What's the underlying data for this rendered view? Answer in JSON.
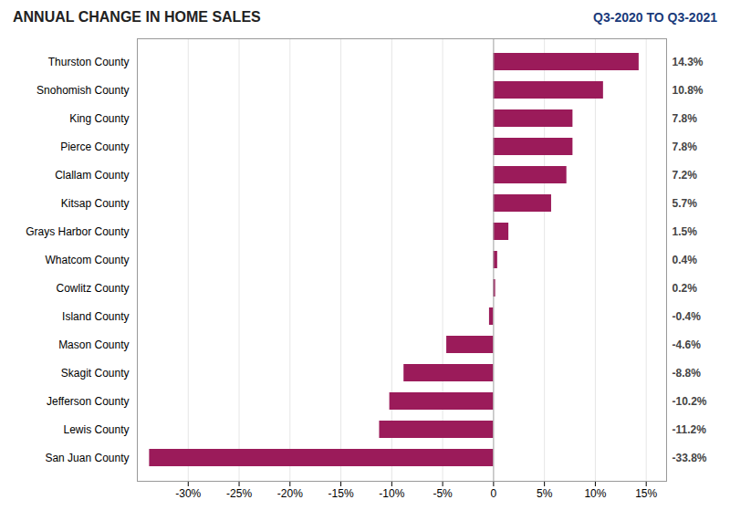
{
  "chart_data": {
    "type": "bar",
    "orientation": "horizontal",
    "title": "ANNUAL CHANGE IN HOME SALES",
    "subtitle": "Q3-2020 TO Q3-2021",
    "categories": [
      "Thurston County",
      "Snohomish County",
      "King County",
      "Pierce County",
      "Clallam County",
      "Kitsap County",
      "Grays Harbor County",
      "Whatcom County",
      "Cowlitz County",
      "Island County",
      "Mason County",
      "Skagit County",
      "Jefferson County",
      "Lewis County",
      "San Juan County"
    ],
    "values": [
      14.3,
      10.8,
      7.8,
      7.8,
      7.2,
      5.7,
      1.5,
      0.4,
      0.2,
      -0.4,
      -4.6,
      -8.8,
      -10.2,
      -11.2,
      -33.8
    ],
    "value_labels": [
      "14.3%",
      "10.8%",
      "7.8%",
      "7.8%",
      "7.2%",
      "5.7%",
      "1.5%",
      "0.4%",
      "0.2%",
      "-0.4%",
      "-4.6%",
      "-8.8%",
      "-10.2%",
      "-11.2%",
      "-33.8%"
    ],
    "data_labels": true,
    "color": "#9B1B5A",
    "xlim": [
      -35,
      17
    ],
    "xticks": [
      {
        "value": -30,
        "label": "-30%"
      },
      {
        "value": -25,
        "label": "-25%"
      },
      {
        "value": -20,
        "label": "-20%"
      },
      {
        "value": -15,
        "label": "-15%"
      },
      {
        "value": -10,
        "label": "-10%"
      },
      {
        "value": -5,
        "label": "-5%"
      },
      0,
      {
        "value": 5,
        "label": "5%"
      },
      {
        "value": 10,
        "label": "10%"
      },
      {
        "value": 15,
        "label": "15%"
      }
    ],
    "grid": true
  }
}
